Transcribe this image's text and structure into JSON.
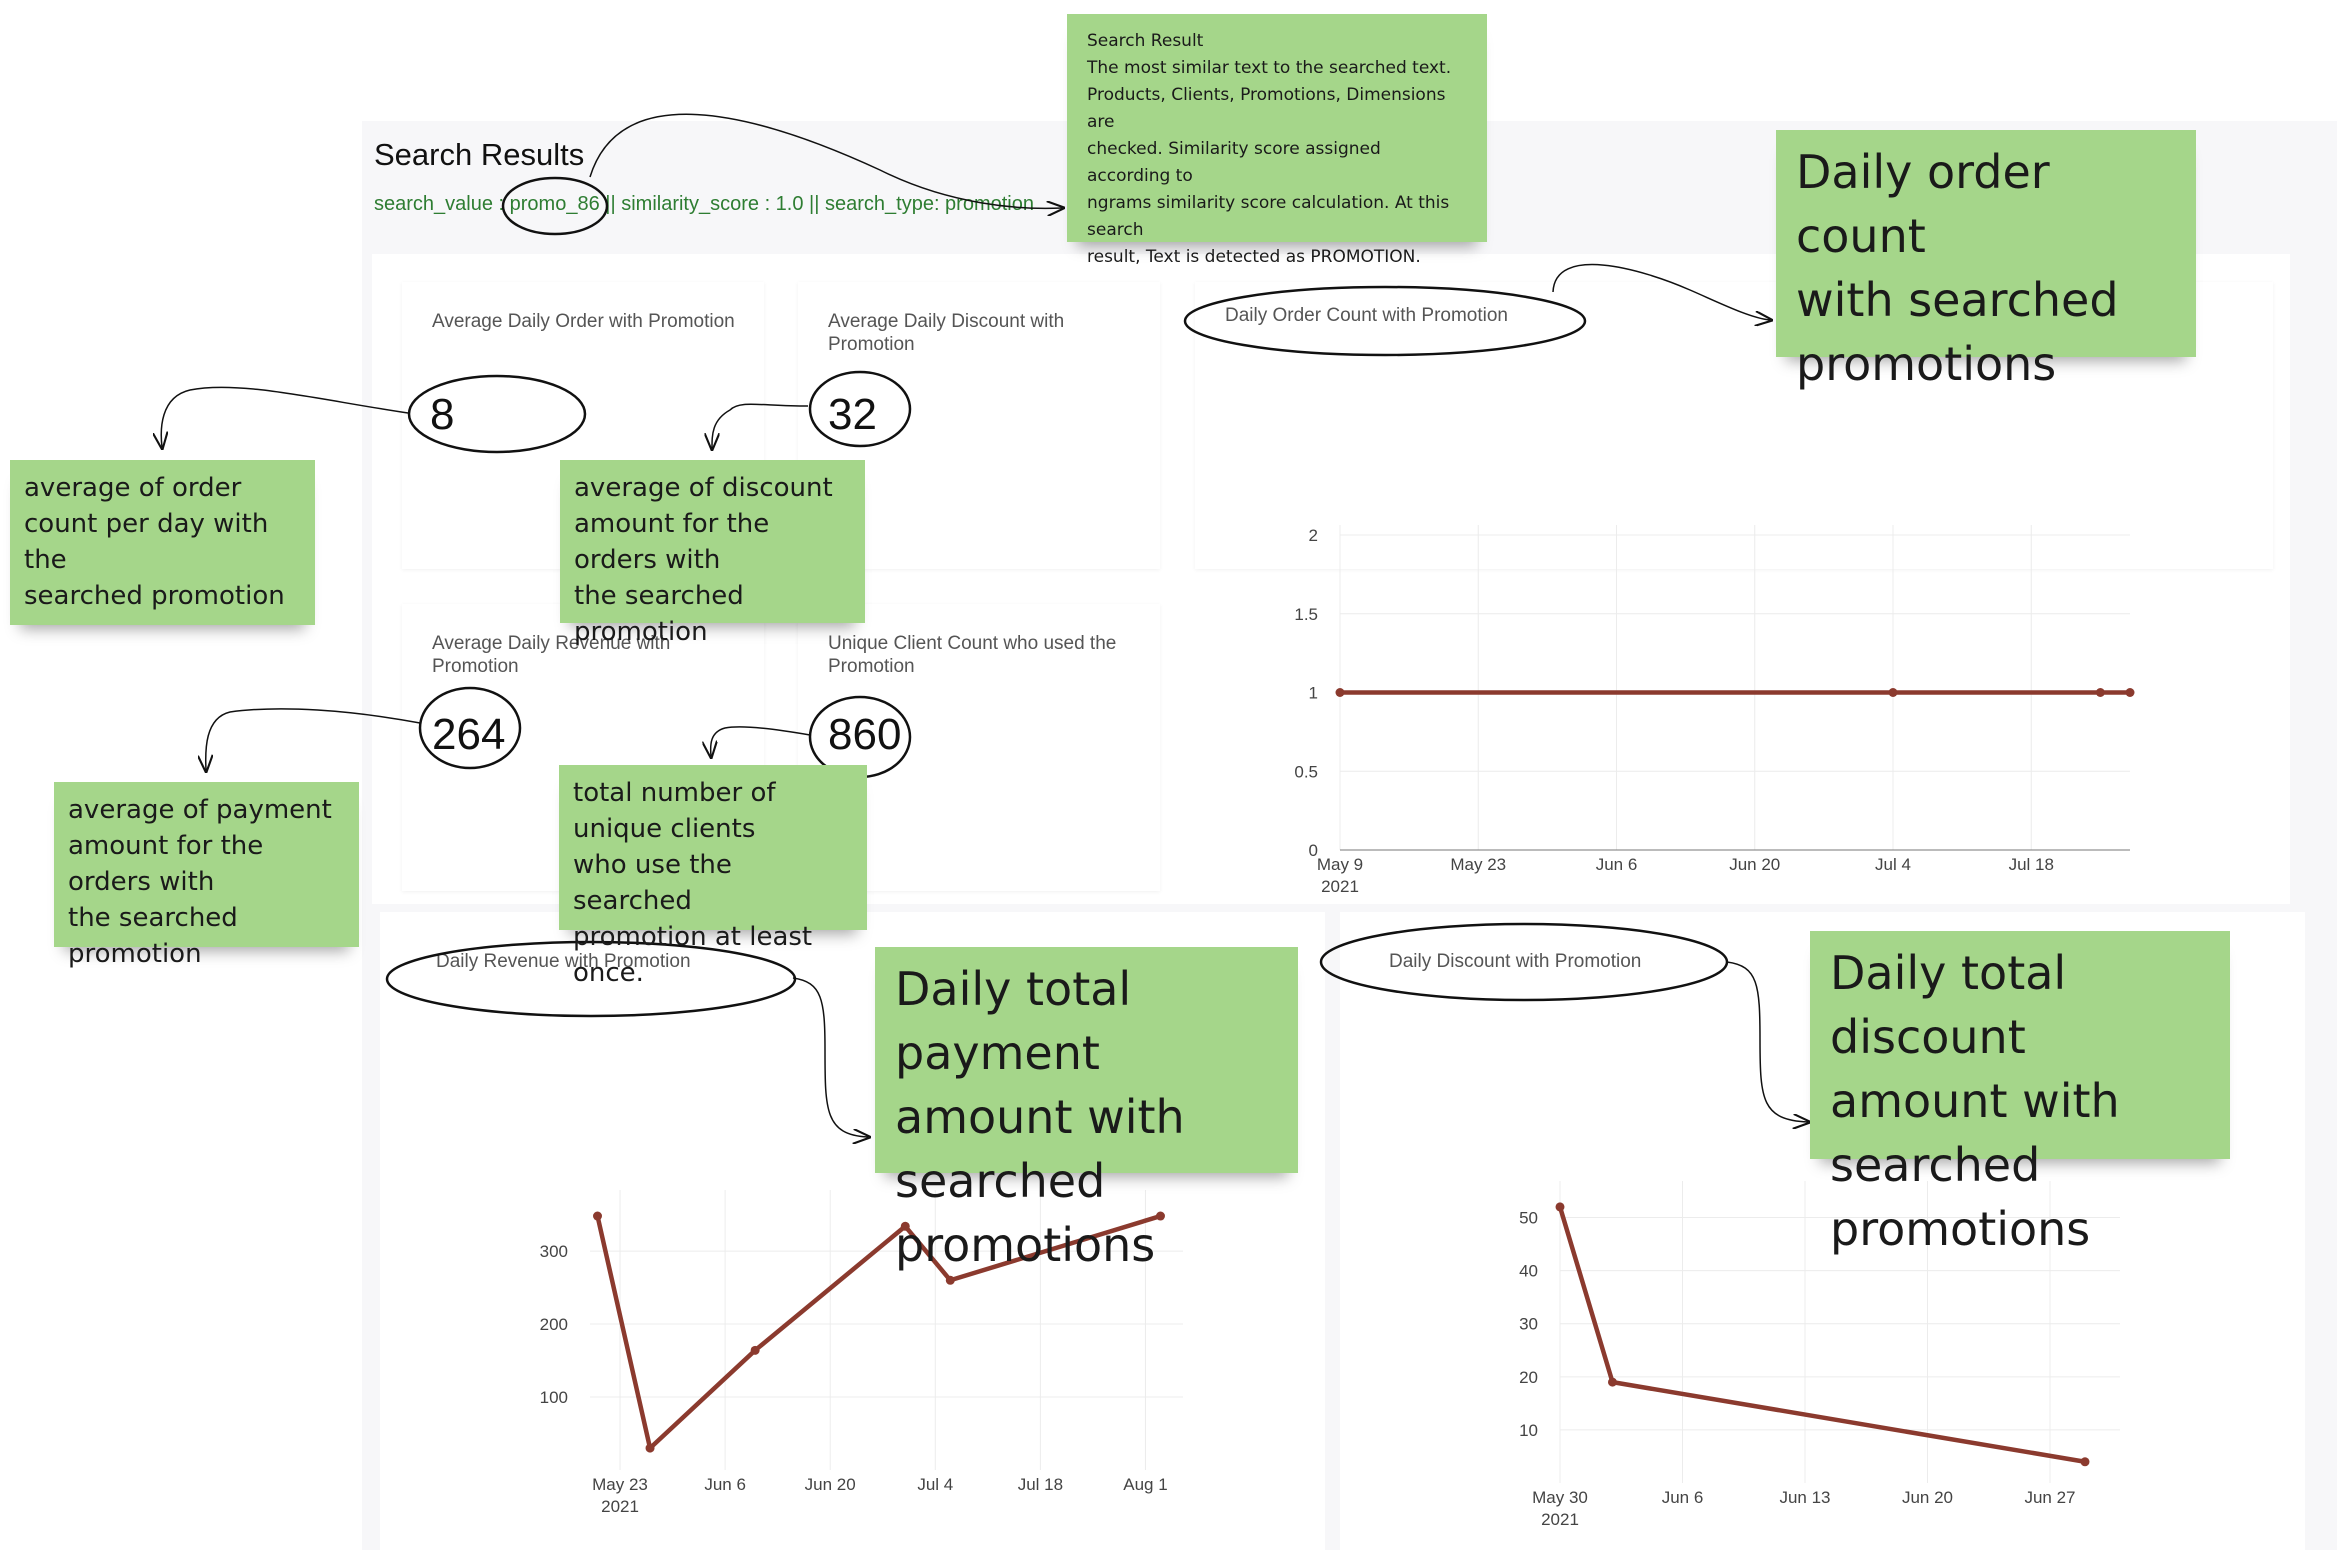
{
  "header": {
    "title": "Search Results",
    "search_value_label": "search_value :",
    "search_value": "promo_86",
    "rest": "|| similarity_score : 1.0 || search_type: promotion"
  },
  "kpis": {
    "avg_order": {
      "title": "Average Daily Order with Promotion",
      "value": "8"
    },
    "avg_discount": {
      "title": "Average Daily Discount with Promotion",
      "value": "32"
    },
    "avg_revenue": {
      "title": "Average Daily Revenue with Promotion",
      "value": "264"
    },
    "unique_clients": {
      "title": "Unique Client Count who used the Promotion",
      "value": "860"
    }
  },
  "charts": {
    "order_count": {
      "title": "Daily Order Count with Promotion"
    },
    "revenue": {
      "title": "Daily Revenue with Promotion"
    },
    "discount": {
      "title": "Daily Discount with Promotion"
    }
  },
  "notes": {
    "search_info": [
      "Search Result",
      "The most similar text to the searched text.",
      "Products, Clients, Promotions, Dimensions are",
      "checked. Similarity score assigned according to",
      "ngrams similarity score calculation. At this search",
      "result, Text is detected as PROMOTION."
    ],
    "avg_order": [
      "average of order",
      "count per day with the",
      "searched promotion"
    ],
    "avg_discount": [
      "average of discount",
      "amount for the orders with",
      "the searched promotion"
    ],
    "avg_payment": [
      "average of payment",
      "amount for the orders with",
      "the searched promotion"
    ],
    "unique_clients": [
      "total number of unique clients",
      "who use the searched",
      "promotion at least once."
    ],
    "daily_order": [
      "Daily order count",
      "with searched",
      "promotions"
    ],
    "daily_payment": [
      "Daily total payment",
      "amount with",
      "searched promotions"
    ],
    "daily_discount": [
      "Daily total discount",
      "amount with",
      "searched promotions"
    ]
  },
  "colors": {
    "line": "#8b3a2e",
    "note": "#a5d68a",
    "search_text": "#2e7d32"
  },
  "chart_data": [
    {
      "type": "line",
      "title": "Daily Order Count with Promotion",
      "x": [
        "2021-05-09",
        "2021-07-04",
        "2021-07-25",
        "2021-07-28"
      ],
      "y": [
        1,
        1,
        1,
        1
      ],
      "xticks": [
        "May 9",
        "May 23",
        "Jun 6",
        "Jun 20",
        "Jul 4",
        "Jul 18"
      ],
      "xtick_year": "2021",
      "yticks": [
        "0",
        "0.5",
        "1",
        "1.5",
        "2"
      ],
      "ylim": [
        0,
        2
      ]
    },
    {
      "type": "line",
      "title": "Daily Revenue with Promotion",
      "x": [
        "2021-05-20",
        "2021-05-27",
        "2021-06-10",
        "2021-06-30",
        "2021-07-06",
        "2021-08-03"
      ],
      "y": [
        348,
        30,
        164,
        334,
        260,
        348
      ],
      "xticks": [
        "May 23",
        "Jun 6",
        "Jun 20",
        "Jul 4",
        "Jul 18",
        "Aug 1"
      ],
      "xtick_year": "2021",
      "yticks": [
        "100",
        "200",
        "300"
      ],
      "ylim": [
        0,
        370
      ]
    },
    {
      "type": "line",
      "title": "Daily Discount with Promotion",
      "x": [
        "2021-05-30",
        "2021-06-02",
        "2021-06-29"
      ],
      "y": [
        52,
        19,
        4
      ],
      "xticks": [
        "May 30",
        "Jun 6",
        "Jun 13",
        "Jun 20",
        "Jun 27"
      ],
      "xtick_year": "2021",
      "yticks": [
        "10",
        "20",
        "30",
        "40",
        "50"
      ],
      "ylim": [
        0,
        55
      ]
    }
  ]
}
